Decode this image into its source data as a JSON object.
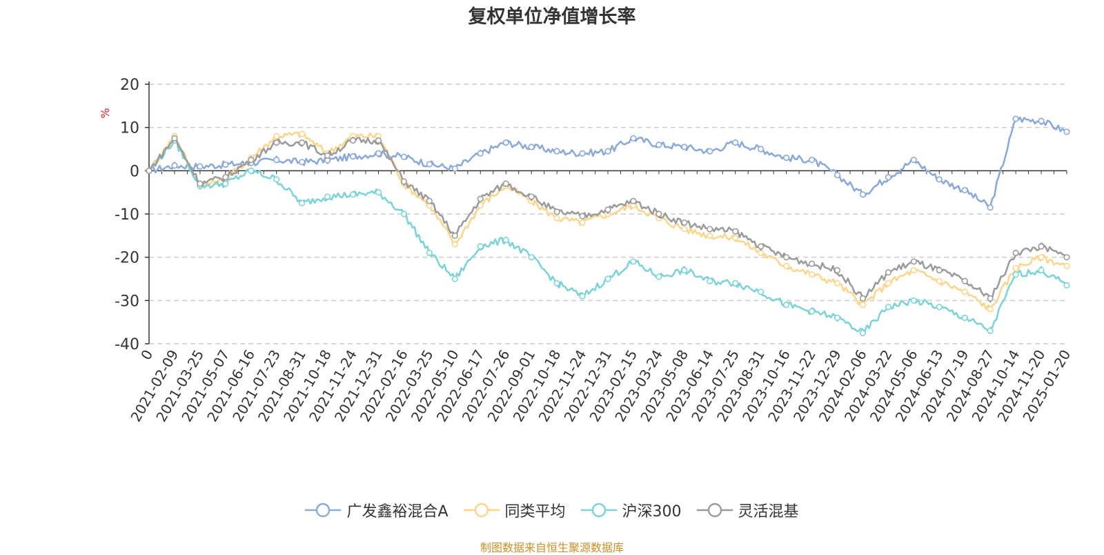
{
  "title": "复权单位净值增长率",
  "source_note": "制图数据来自恒生聚源数据库",
  "chart_data": {
    "type": "line",
    "title": "复权单位净值增长率",
    "ylabel": "%",
    "ylim": [
      -40,
      20
    ],
    "yticks": [
      20,
      10,
      0,
      -10,
      -20,
      -30,
      -40
    ],
    "grid": true,
    "legend_position": "bottom",
    "x_labels": [
      "0",
      "2021-02-09",
      "2021-03-25",
      "2021-05-07",
      "2021-06-16",
      "2021-07-23",
      "2021-08-31",
      "2021-10-18",
      "2021-11-24",
      "2021-12-31",
      "2022-02-16",
      "2022-03-25",
      "2022-05-10",
      "2022-06-17",
      "2022-07-26",
      "2022-09-01",
      "2022-10-18",
      "2022-11-24",
      "2022-12-31",
      "2023-02-15",
      "2023-03-24",
      "2023-05-08",
      "2023-06-14",
      "2023-07-25",
      "2023-08-31",
      "2023-10-16",
      "2023-11-22",
      "2023-12-29",
      "2024-02-06",
      "2024-03-22",
      "2024-05-06",
      "2024-06-13",
      "2024-07-19",
      "2024-08-27",
      "2024-10-14",
      "2024-11-20",
      "2025-01-20"
    ],
    "series": [
      {
        "name": "广发鑫裕混合A",
        "color": "#8caad6",
        "values": [
          0,
          1.2,
          1.0,
          1.4,
          1.8,
          2.5,
          2.0,
          2.4,
          3.3,
          4.0,
          3.2,
          1.5,
          0.5,
          4.0,
          6.5,
          5.5,
          4.5,
          4.0,
          4.5,
          7.5,
          6.0,
          5.5,
          4.5,
          6.5,
          5.0,
          3.0,
          2.5,
          -1.0,
          -5.5,
          -1.5,
          2.5,
          -2.0,
          -4.5,
          -8.5,
          12.0,
          11.5,
          9.0
        ]
      },
      {
        "name": "同类平均",
        "color": "#fbd68e",
        "values": [
          0,
          8.0,
          -3.5,
          -2.0,
          3.0,
          8.0,
          8.5,
          4.0,
          8.0,
          8.0,
          -3.0,
          -8.0,
          -17.0,
          -8.0,
          -3.5,
          -7.0,
          -11.0,
          -12.0,
          -10.0,
          -8.0,
          -11.0,
          -13.5,
          -15.0,
          -15.5,
          -19.0,
          -22.0,
          -24.0,
          -26.0,
          -31.0,
          -26.0,
          -23.0,
          -25.5,
          -28.0,
          -32.0,
          -22.5,
          -20.0,
          -22.0
        ]
      },
      {
        "name": "沪深300",
        "color": "#7ed3d6",
        "values": [
          0,
          7.0,
          -3.5,
          -3.0,
          0.0,
          -2.0,
          -7.5,
          -6.0,
          -5.5,
          -5.0,
          -10.0,
          -19.0,
          -25.0,
          -17.5,
          -16.0,
          -20.0,
          -26.0,
          -29.0,
          -25.0,
          -21.0,
          -24.5,
          -23.0,
          -25.5,
          -26.0,
          -28.0,
          -31.0,
          -32.5,
          -34.0,
          -37.5,
          -31.5,
          -30.0,
          -31.5,
          -34.0,
          -37.0,
          -24.0,
          -23.0,
          -26.5
        ]
      },
      {
        "name": "灵活混基",
        "color": "#9c9c9c",
        "values": [
          0,
          7.5,
          -3.0,
          -1.5,
          2.5,
          6.5,
          6.5,
          3.5,
          7.0,
          7.0,
          -2.5,
          -7.0,
          -15.0,
          -6.5,
          -3.0,
          -6.0,
          -9.5,
          -10.5,
          -9.0,
          -7.0,
          -10.0,
          -12.0,
          -13.5,
          -14.0,
          -17.5,
          -20.0,
          -21.5,
          -23.0,
          -29.5,
          -23.5,
          -21.0,
          -23.0,
          -25.5,
          -29.5,
          -19.0,
          -17.5,
          -20.0
        ]
      }
    ]
  }
}
